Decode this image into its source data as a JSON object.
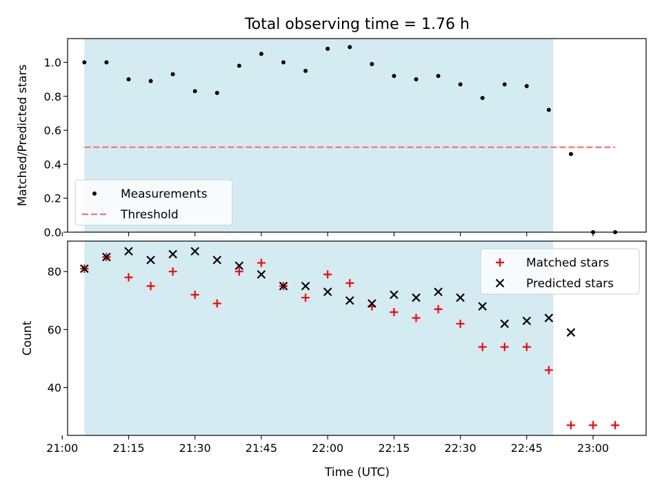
{
  "figure": {
    "title": "Total observing time = 1.76 h",
    "xlabel": "Time (UTC)"
  },
  "chart_data": [
    {
      "type": "scatter",
      "ylabel": "Matched/Predicted stars",
      "x_unit": "time (UTC)",
      "xlim": [
        "21:01:12",
        "23:12:00"
      ],
      "ylim": [
        0,
        1.14
      ],
      "yticks": [
        0.0,
        0.2,
        0.4,
        0.6,
        0.8,
        1.0
      ],
      "ytick_labels": [
        "0.0",
        "0.2",
        "0.4",
        "0.6",
        "0.8",
        "1.0"
      ],
      "shaded_interval": {
        "x0": "21:05",
        "x1": "22:51",
        "color": "#add8e6"
      },
      "legend": {
        "position": "lower-left",
        "entries": [
          "Measurements",
          "Threshold"
        ]
      },
      "series": [
        {
          "name": "Measurements",
          "marker": "dot",
          "color": "#000000",
          "x": [
            "21:05",
            "21:10",
            "21:15",
            "21:20",
            "21:25",
            "21:30",
            "21:35",
            "21:40",
            "21:45",
            "21:50",
            "21:55",
            "22:00",
            "22:05",
            "22:10",
            "22:15",
            "22:20",
            "22:25",
            "22:30",
            "22:35",
            "22:40",
            "22:45",
            "22:50",
            "22:55",
            "23:00",
            "23:05"
          ],
          "y": [
            1.0,
            1.0,
            0.9,
            0.89,
            0.93,
            0.83,
            0.82,
            0.98,
            1.05,
            1.0,
            0.95,
            1.08,
            1.09,
            0.99,
            0.92,
            0.9,
            0.92,
            0.87,
            0.79,
            0.87,
            0.86,
            0.72,
            0.46,
            0.0,
            0.0
          ]
        },
        {
          "name": "Threshold",
          "style": "dashed",
          "color": "#ff7070",
          "x": [
            "21:05",
            "23:05"
          ],
          "y": [
            0.5,
            0.5
          ]
        }
      ]
    },
    {
      "type": "scatter",
      "ylabel": "Count",
      "x_unit": "time (UTC)",
      "xlim": [
        "21:01:12",
        "23:12:00"
      ],
      "ylim": [
        23.5,
        90.5
      ],
      "yticks": [
        40,
        60,
        80
      ],
      "ytick_labels": [
        "40",
        "60",
        "80"
      ],
      "xticks": [
        "21:00",
        "21:15",
        "21:30",
        "21:45",
        "22:00",
        "22:15",
        "22:30",
        "22:45",
        "23:00"
      ],
      "xtick_labels": [
        "21:00",
        "21:15",
        "21:30",
        "21:45",
        "22:00",
        "22:15",
        "22:30",
        "22:45",
        "23:00"
      ],
      "shaded_interval": {
        "x0": "21:05",
        "x1": "22:51",
        "color": "#add8e6"
      },
      "legend": {
        "position": "upper-right",
        "entries": [
          "Matched stars",
          "Predicted stars"
        ]
      },
      "series": [
        {
          "name": "Matched stars",
          "marker": "plus",
          "color": "#ff0000",
          "x": [
            "21:05",
            "21:10",
            "21:15",
            "21:20",
            "21:25",
            "21:30",
            "21:35",
            "21:40",
            "21:45",
            "21:50",
            "21:55",
            "22:00",
            "22:05",
            "22:10",
            "22:15",
            "22:20",
            "22:25",
            "22:30",
            "22:35",
            "22:40",
            "22:45",
            "22:50",
            "22:55",
            "23:00",
            "23:05"
          ],
          "y": [
            81,
            85,
            78,
            75,
            80,
            72,
            69,
            80,
            83,
            75,
            71,
            79,
            76,
            68,
            66,
            64,
            67,
            62,
            54,
            54,
            54,
            46,
            27,
            27,
            27
          ]
        },
        {
          "name": "Predicted stars",
          "marker": "x",
          "color": "#000000",
          "x": [
            "21:05",
            "21:10",
            "21:15",
            "21:20",
            "21:25",
            "21:30",
            "21:35",
            "21:40",
            "21:45",
            "21:50",
            "21:55",
            "22:00",
            "22:05",
            "22:10",
            "22:15",
            "22:20",
            "22:25",
            "22:30",
            "22:35",
            "22:40",
            "22:45",
            "22:50",
            "22:55"
          ],
          "y": [
            81,
            85,
            87,
            84,
            86,
            87,
            84,
            82,
            79,
            75,
            75,
            73,
            70,
            69,
            72,
            71,
            73,
            71,
            68,
            62,
            63,
            64,
            59
          ]
        }
      ]
    }
  ]
}
